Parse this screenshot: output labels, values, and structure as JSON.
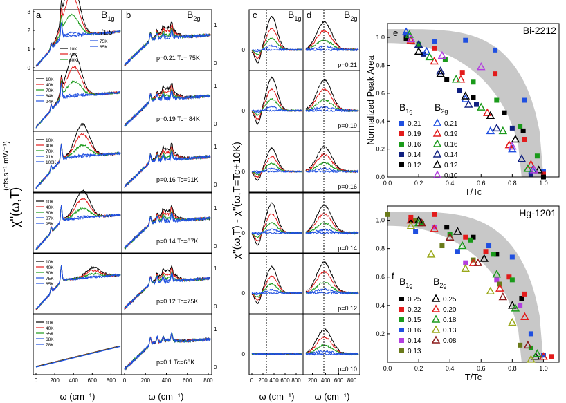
{
  "chart_data": [
    {
      "panel": "a",
      "type": "line",
      "title": "B1g",
      "scale_note": "/1.5",
      "xlabel": "ω (cm⁻¹)",
      "ylabel": "χ''(ω,T)",
      "ylabel_unit": "(cts.s⁻¹.mW⁻¹)",
      "x_ticks": [
        "0",
        "200",
        "400",
        "600",
        "800"
      ],
      "y_ticks_top": [
        "0",
        "1",
        "2",
        "3"
      ],
      "rows": [
        {
          "doping": "0.21",
          "legend": [
            "10K",
            "40K",
            "60K",
            "75K",
            "85K"
          ]
        },
        {
          "doping": "0.19",
          "legend": [
            "10K",
            "40K",
            "70K",
            "84K",
            "94K"
          ]
        },
        {
          "doping": "0.16",
          "legend": [
            "10K",
            "40K",
            "70K",
            "91K",
            "100K"
          ]
        },
        {
          "doping": "0.14",
          "legend": [
            "10K",
            "40K",
            "60K",
            "87K",
            "95K"
          ]
        },
        {
          "doping": "0.12",
          "legend": [
            "10K",
            "40K",
            "60K",
            "75K",
            "85K"
          ]
        },
        {
          "doping": "0.10",
          "legend": [
            "10K",
            "40K",
            "55K",
            "68K",
            "78K"
          ]
        }
      ]
    },
    {
      "panel": "b",
      "type": "line",
      "title": "B2g",
      "xlabel": "ω (cm⁻¹)",
      "x_ticks": [
        "0",
        "200",
        "400",
        "600",
        "800"
      ],
      "y_ticks": [
        "0",
        "1"
      ],
      "row_labels": [
        "p=0.21  Tc= 75K",
        "p=0.19  Tc= 84K",
        "p=0.16  Tc=91K",
        "p=0.14  Tc=87K",
        "p=0.12  Tc=75K",
        "p=0.1  Tc=68K"
      ]
    },
    {
      "panel": "c",
      "type": "line",
      "title": "B1g",
      "xlabel": "ω (cm⁻¹)",
      "ylabel": "χ''(ω,T) - χ''(ω,T=Tc+10K)",
      "x_ticks": [
        "0",
        "200",
        "400",
        "600",
        "800"
      ],
      "y_tick": "0"
    },
    {
      "panel": "d",
      "type": "line",
      "title": "B2g",
      "xlabel": "ω (cm⁻¹)",
      "x_ticks": [
        "200",
        "400",
        "600",
        "800"
      ],
      "y_tick": "0",
      "row_labels": [
        "p=0.21",
        "p=0.19",
        "p=0.16",
        "p=0.14",
        "p=0.12",
        "p=0.10"
      ]
    },
    {
      "panel": "e",
      "type": "scatter",
      "title": "Bi-2212",
      "xlabel": "T/Tc",
      "ylabel": "Normalized Peak Area",
      "xlim": [
        0,
        1.1
      ],
      "ylim": [
        0,
        1.1
      ],
      "x_ticks": [
        "0.0",
        "0.2",
        "0.4",
        "0.6",
        "0.8",
        "1.0"
      ],
      "y_ticks": [
        "0.0",
        "0.2",
        "0.4",
        "0.6",
        "0.8",
        "1.0"
      ],
      "legend_b1g_title": "B1g",
      "legend_b2g_title": "B2g",
      "series": [
        {
          "name": "B1g 0.21",
          "label": "0.21",
          "marker": "square",
          "color": "#1f4fe0",
          "x": [
            0.12,
            0.3,
            0.5,
            0.69,
            0.88,
            1.0
          ],
          "y": [
            1.02,
            0.97,
            0.98,
            0.91,
            0.55,
            0.04
          ]
        },
        {
          "name": "B1g 0.19",
          "label": "0.19",
          "marker": "square",
          "color": "#e21b1b",
          "x": [
            0.12,
            0.3,
            0.48,
            0.69,
            0.88,
            1.0
          ],
          "y": [
            1.0,
            0.92,
            0.75,
            0.74,
            0.27,
            0.02
          ]
        },
        {
          "name": "B1g 0.16",
          "label": "0.16",
          "marker": "square",
          "color": "#1a9a1a",
          "x": [
            0.2,
            0.37,
            0.55,
            0.7,
            0.85,
            0.96
          ],
          "y": [
            0.95,
            0.84,
            0.68,
            0.55,
            0.36,
            0.15
          ]
        },
        {
          "name": "B1g 0.14",
          "label": "0.14",
          "marker": "square",
          "color": "#102080",
          "x": [
            0.12,
            0.23,
            0.46,
            0.57,
            0.8,
            0.92
          ],
          "y": [
            1.0,
            0.88,
            0.62,
            0.52,
            0.35,
            0.02
          ]
        },
        {
          "name": "B1g 0.12",
          "label": "0.12",
          "marker": "square",
          "color": "#000000",
          "x": [
            0.12,
            0.38,
            0.55,
            0.75,
            0.87,
            1.0
          ],
          "y": [
            0.99,
            0.7,
            0.57,
            0.46,
            0.33,
            0.0
          ]
        },
        {
          "name": "B2g 0.21",
          "label": "0.21",
          "marker": "triangle",
          "color": "#1f4fe0",
          "x": [
            0.12,
            0.25,
            0.5,
            0.66,
            0.8,
            0.93
          ],
          "y": [
            1.04,
            0.9,
            0.56,
            0.33,
            0.2,
            0.05
          ]
        },
        {
          "name": "B2g 0.19",
          "label": "0.19",
          "marker": "triangle",
          "color": "#e21b1b",
          "x": [
            0.15,
            0.3,
            0.47,
            0.64,
            0.78,
            0.92
          ],
          "y": [
            0.98,
            0.83,
            0.7,
            0.46,
            0.23,
            0.09
          ]
        },
        {
          "name": "B2g 0.16",
          "label": "0.16",
          "marker": "triangle",
          "color": "#1a9a1a",
          "x": [
            0.14,
            0.27,
            0.44,
            0.6,
            0.74,
            0.9
          ],
          "y": [
            1.02,
            0.86,
            0.7,
            0.5,
            0.33,
            0.06
          ]
        },
        {
          "name": "B2g 0.14",
          "label": "0.14",
          "marker": "triangle",
          "color": "#102080",
          "x": [
            0.2,
            0.34,
            0.52,
            0.7,
            0.86
          ],
          "y": [
            0.95,
            0.76,
            0.52,
            0.35,
            0.13
          ]
        },
        {
          "name": "B2g 0.12",
          "label": "0.12",
          "marker": "triangle",
          "color": "#000000",
          "x": [
            0.2,
            0.34,
            0.5,
            0.66,
            0.82,
            0.97
          ],
          "y": [
            0.9,
            0.74,
            0.58,
            0.44,
            0.27,
            0.05
          ]
        },
        {
          "name": "B2g 0.10",
          "label": "0.10",
          "marker": "triangle",
          "color": "#b33ee0",
          "x": [
            0.15,
            0.35,
            0.6,
            0.8,
            0.94
          ],
          "y": [
            0.99,
            0.87,
            0.79,
            0.22,
            0.05
          ]
        }
      ]
    },
    {
      "panel": "f",
      "type": "scatter",
      "title": "Hg-1201",
      "xlabel": "T/Tc",
      "xlim": [
        0,
        1.1
      ],
      "ylim": [
        0,
        1.1
      ],
      "x_ticks": [
        "0.0",
        "0.2",
        "0.4",
        "0.6",
        "0.8",
        "1.0"
      ],
      "y_ticks": [
        "0.2",
        "0.4",
        "0.6",
        "0.8",
        "1.0"
      ],
      "legend_b1g_title": "B1g",
      "legend_b2g_title": "B2g",
      "series": [
        {
          "name": "B1g 0.25",
          "label": "0.25",
          "marker": "square",
          "color": "#000000",
          "x": [
            0.15,
            0.38,
            0.55,
            0.7,
            0.86
          ],
          "y": [
            1.0,
            0.95,
            0.88,
            0.76,
            0.45
          ]
        },
        {
          "name": "B1g 0.22",
          "label": "0.22",
          "marker": "square",
          "color": "#e21b1b",
          "x": [
            0.15,
            0.3,
            0.5,
            0.63,
            0.78,
            0.88,
            1.05
          ],
          "y": [
            1.02,
            1.04,
            0.88,
            0.78,
            0.6,
            0.48,
            0.04
          ]
        },
        {
          "name": "B1g 0.15",
          "label": "0.15",
          "marker": "square",
          "color": "#1a9a1a",
          "x": [
            0.22,
            0.4,
            0.53,
            0.68,
            0.8,
            0.92
          ],
          "y": [
            0.98,
            0.9,
            0.86,
            0.76,
            0.58,
            0.1
          ]
        },
        {
          "name": "B1g 0.16",
          "label": "0.16",
          "marker": "square",
          "color": "#1f4fe0",
          "x": [
            0.18,
            0.45,
            0.65,
            0.8,
            0.92,
            1.0
          ],
          "y": [
            0.92,
            0.78,
            0.82,
            0.74,
            0.2,
            0.05
          ]
        },
        {
          "name": "B1g 0.14",
          "label": "0.14",
          "marker": "square",
          "color": "#b33ee0",
          "x": [
            0.3,
            0.5,
            0.7,
            0.85
          ],
          "y": [
            0.95,
            0.7,
            0.58,
            0.4
          ]
        },
        {
          "name": "B1g 0.13",
          "label": "0.13",
          "marker": "square",
          "color": "#6a7a1a",
          "x": [
            0.0,
            0.18,
            0.35,
            0.55,
            0.72,
            0.85
          ],
          "y": [
            1.04,
            1.0,
            0.82,
            0.72,
            0.55,
            0.12
          ]
        },
        {
          "name": "B2g 0.25",
          "label": "0.25",
          "marker": "triangle",
          "color": "#000000",
          "x": [
            0.2,
            0.45,
            0.62,
            0.8,
            0.95
          ],
          "y": [
            1.0,
            0.92,
            0.73,
            0.4,
            0.04
          ]
        },
        {
          "name": "B2g 0.20",
          "label": "0.20",
          "marker": "triangle",
          "color": "#e21b1b",
          "x": [
            0.15,
            0.3,
            0.55,
            0.72,
            0.88,
            1.0
          ],
          "y": [
            1.0,
            0.94,
            0.7,
            0.52,
            0.32,
            0.04
          ]
        },
        {
          "name": "B2g 0.18",
          "label": "0.18",
          "marker": "triangle",
          "color": "#1a9a1a",
          "x": [
            0.2,
            0.48,
            0.7,
            0.82,
            0.96
          ],
          "y": [
            0.98,
            0.82,
            0.62,
            0.38,
            0.06
          ]
        },
        {
          "name": "B2g 0.13",
          "label": "0.13",
          "marker": "triangle",
          "color": "#9aa81a",
          "x": [
            0.15,
            0.28,
            0.5,
            0.66,
            0.8,
            0.92
          ],
          "y": [
            0.96,
            0.76,
            0.66,
            0.5,
            0.28,
            0.02
          ]
        },
        {
          "name": "B2g 0.08",
          "label": "0.08",
          "marker": "triangle",
          "color": "#8b1a1a",
          "x": [
            0.22,
            0.4,
            0.58,
            0.74,
            0.9
          ],
          "y": [
            0.98,
            0.88,
            0.7,
            0.46,
            0.12
          ]
        }
      ]
    }
  ]
}
